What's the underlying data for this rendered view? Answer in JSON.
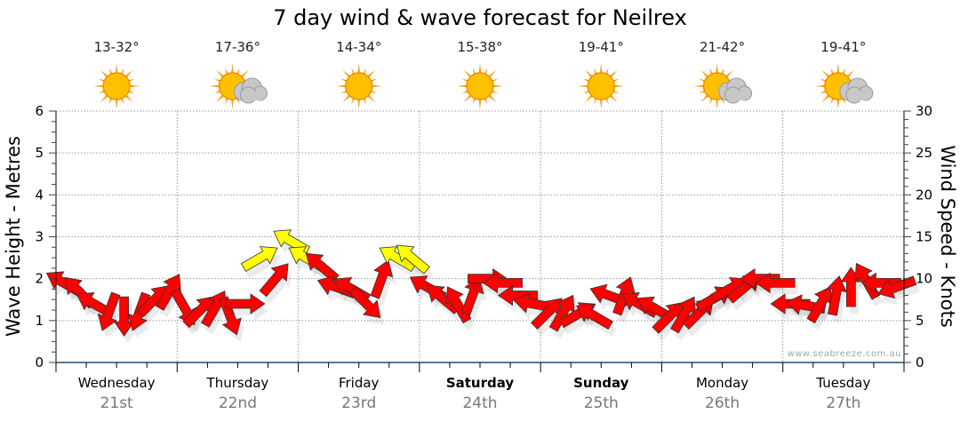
{
  "chart_data": {
    "type": "scatter",
    "title": "7 day wind & wave forecast for Neilrex",
    "ylabel_left": "Wave Height - Metres",
    "ylabel_right": "Wind Speed - Knots",
    "ylim_left": [
      0,
      6
    ],
    "ylim_right": [
      0,
      30
    ],
    "yticks_left": [
      "0",
      "1",
      "2",
      "3",
      "4",
      "5",
      "6"
    ],
    "yticks_right": [
      "0",
      "5",
      "10",
      "15",
      "20",
      "25",
      "30"
    ],
    "grid": true,
    "watermark": "www.seabreeze.com.au",
    "days": [
      {
        "name": "Wednesday",
        "date": "21st",
        "temp": "13-32°",
        "icon": "sun-icon",
        "bold": false
      },
      {
        "name": "Thursday",
        "date": "22nd",
        "temp": "17-36°",
        "icon": "sun-cloud-icon",
        "bold": false
      },
      {
        "name": "Friday",
        "date": "23rd",
        "temp": "14-34°",
        "icon": "sun-icon",
        "bold": false
      },
      {
        "name": "Saturday",
        "date": "24th",
        "temp": "15-38°",
        "icon": "sun-icon",
        "bold": true
      },
      {
        "name": "Sunday",
        "date": "25th",
        "temp": "19-41°",
        "icon": "sun-icon",
        "bold": true
      },
      {
        "name": "Monday",
        "date": "26th",
        "temp": "21-42°",
        "icon": "sun-cloud-icon",
        "bold": false
      },
      {
        "name": "Tuesday",
        "date": "27th",
        "temp": "19-41°",
        "icon": "sun-cloud-icon",
        "bold": false
      }
    ],
    "wind_interval_hours": 3,
    "wind_speed_knots": [
      9.5,
      8.5,
      7,
      6,
      5.5,
      6,
      7.5,
      8.5,
      6.5,
      6.2,
      6.5,
      5.5,
      7,
      12.5,
      10,
      14.5,
      12.5,
      11.5,
      9,
      8.8,
      7,
      10,
      12.5,
      12.5,
      9,
      7.7,
      7,
      8,
      10,
      9.5,
      8,
      7,
      6,
      6,
      5.8,
      5.6,
      8,
      8,
      7,
      6.5,
      5.5,
      5.8,
      6,
      7.7,
      8.8,
      9,
      10,
      9.5,
      7,
      6.8,
      7,
      8,
      9,
      9.8,
      9.5,
      9
    ],
    "wind_arrow_direction_deg": [
      300,
      315,
      300,
      200,
      180,
      200,
      45,
      30,
      150,
      45,
      30,
      160,
      90,
      60,
      40,
      300,
      300,
      310,
      290,
      300,
      135,
      20,
      300,
      310,
      300,
      310,
      330,
      20,
      90,
      270,
      270,
      280,
      45,
      30,
      60,
      300,
      290,
      20,
      300,
      300,
      45,
      30,
      45,
      60,
      60,
      50,
      270,
      270,
      270,
      280,
      30,
      10,
      0,
      330,
      270,
      250
    ],
    "colors": {
      "calm": "#ff0000",
      "strong": "#ffff00",
      "strong_threshold_knots": 12,
      "axis": "#1f4e79",
      "grid": "#999999"
    }
  }
}
